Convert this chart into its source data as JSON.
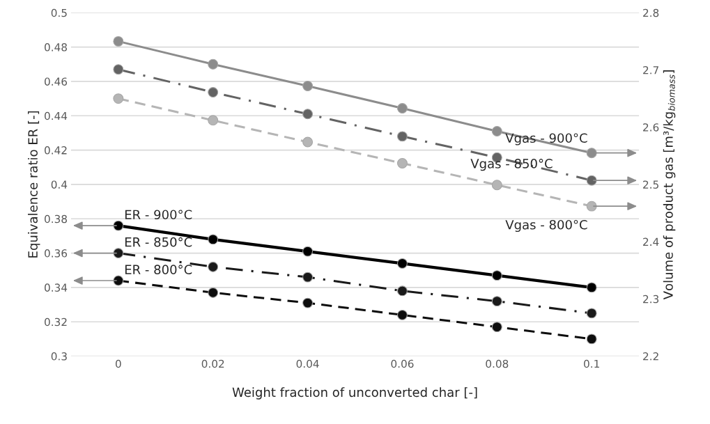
{
  "chart_data": {
    "type": "line",
    "xlabel": "Weight fraction of unconverted char [-]",
    "ylabel": "Equivalence ratio ER [-]",
    "y2label": "Volume of product gas [m³/kg$_{biomass}$]",
    "categories": [
      "0",
      "0.02",
      "0.04",
      "0.06",
      "0.08",
      "0.1"
    ],
    "ylim": [
      0.3,
      0.5
    ],
    "yticks": [
      0.3,
      0.32,
      0.34,
      0.36,
      0.38,
      0.4,
      0.42,
      0.44,
      0.46,
      0.48,
      0.5
    ],
    "y2lim": [
      2.2,
      2.8
    ],
    "y2ticks": [
      2.2,
      2.3,
      2.4,
      2.5,
      2.6,
      2.7,
      2.8
    ],
    "grid": "y",
    "marker": "circle",
    "series": [
      {
        "name": "Vgas - 900°C",
        "color": "#8c8c8c",
        "axis": "y2",
        "line_style": "solid",
        "values": [
          2.75,
          2.71,
          2.672,
          2.633,
          2.593,
          2.555
        ]
      },
      {
        "name": "Vgas - 850°C",
        "color": "#636363",
        "axis": "y2",
        "line_style": "dashdot",
        "values": [
          2.701,
          2.661,
          2.623,
          2.584,
          2.547,
          2.507
        ]
      },
      {
        "name": "Vgas - 800°C",
        "color": "#b5b5b5",
        "axis": "y2",
        "line_style": "dashed",
        "values": [
          2.65,
          2.612,
          2.574,
          2.537,
          2.499,
          2.462
        ]
      },
      {
        "name": "ER - 900°C",
        "color": "#000000",
        "axis": "y",
        "line_style": "solid",
        "values": [
          0.376,
          0.368,
          0.361,
          0.354,
          0.347,
          0.34
        ]
      },
      {
        "name": "ER - 850°C",
        "color": "#1a1a1a",
        "axis": "y",
        "line_style": "dashdot",
        "values": [
          0.36,
          0.352,
          0.346,
          0.338,
          0.332,
          0.325
        ]
      },
      {
        "name": "ER - 800°C",
        "color": "#0d0d0d",
        "axis": "y",
        "line_style": "dashed",
        "values": [
          0.344,
          0.337,
          0.331,
          0.324,
          0.317,
          0.31
        ]
      }
    ]
  }
}
